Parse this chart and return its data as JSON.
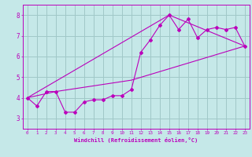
{
  "xlabel": "Windchill (Refroidissement éolien,°C)",
  "xlim": [
    -0.5,
    23.5
  ],
  "ylim": [
    2.5,
    8.5
  ],
  "yticks": [
    3,
    4,
    5,
    6,
    7,
    8
  ],
  "xticks": [
    0,
    1,
    2,
    3,
    4,
    5,
    6,
    7,
    8,
    9,
    10,
    11,
    12,
    13,
    14,
    15,
    16,
    17,
    18,
    19,
    20,
    21,
    22,
    23
  ],
  "bg_color": "#c5e8e8",
  "line_color": "#bb00bb",
  "grid_color": "#a0c8c8",
  "series1_x": [
    0,
    1,
    2,
    3,
    4,
    5,
    6,
    7,
    8,
    9,
    10,
    11,
    12,
    13,
    14,
    15,
    16,
    17,
    18,
    19,
    20,
    21,
    22,
    23
  ],
  "series1_y": [
    4.0,
    3.6,
    4.3,
    4.3,
    3.3,
    3.3,
    3.8,
    3.9,
    3.9,
    4.1,
    4.1,
    4.4,
    6.2,
    6.8,
    7.5,
    8.0,
    7.3,
    7.8,
    6.9,
    7.3,
    7.4,
    7.3,
    7.4,
    6.5
  ],
  "series2_x": [
    0,
    3,
    11,
    23
  ],
  "series2_y": [
    4.0,
    4.3,
    4.85,
    6.5
  ],
  "series3_x": [
    0,
    15,
    23
  ],
  "series3_y": [
    4.0,
    8.0,
    6.5
  ]
}
